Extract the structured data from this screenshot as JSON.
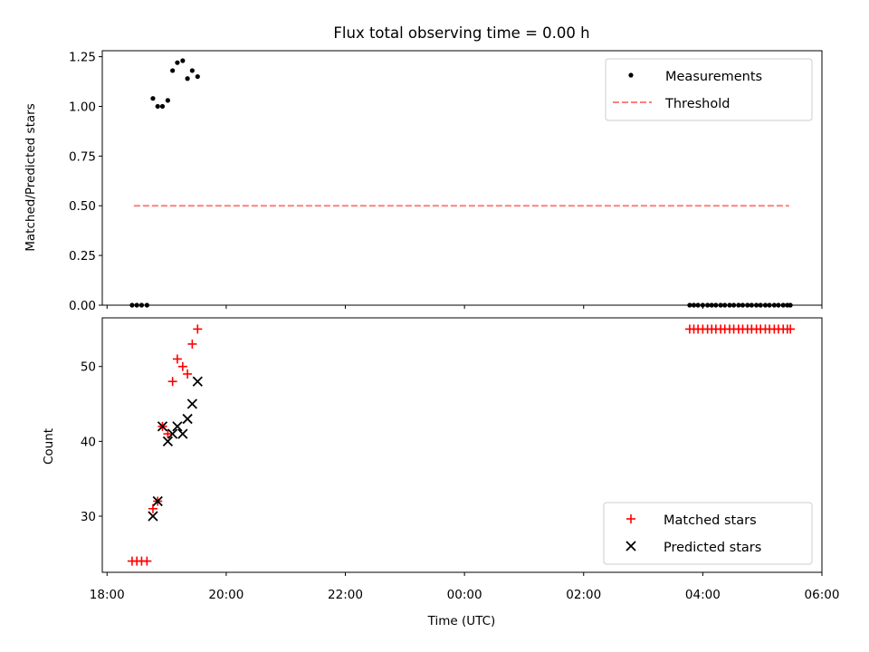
{
  "chart_data": [
    {
      "type": "scatter",
      "title": "Flux total observing time = 0.00 h",
      "xlabel": "",
      "ylabel": "Matched/Predicted stars",
      "xlim": [
        -0.08,
        12.0
      ],
      "ylim": [
        0.0,
        1.28
      ],
      "yticks": [
        0.0,
        0.25,
        0.5,
        0.75,
        1.0,
        1.25
      ],
      "ytick_labels": [
        "0.00",
        "0.25",
        "0.50",
        "0.75",
        "1.00",
        "1.25"
      ],
      "legend_position": "top-right",
      "legend": [
        "Measurements",
        "Threshold"
      ],
      "series": [
        {
          "name": "Measurements",
          "marker": "dot",
          "color": "#000000",
          "x": [
            0.42,
            0.5,
            0.58,
            0.67,
            0.77,
            0.85,
            0.93,
            1.02,
            1.1,
            1.18,
            1.27,
            1.35,
            1.43,
            1.52,
            9.78,
            9.85,
            9.92,
            10.0,
            10.08,
            10.15,
            10.22,
            10.3,
            10.37,
            10.45,
            10.52,
            10.6,
            10.67,
            10.75,
            10.82,
            10.9,
            10.97,
            11.05,
            11.12,
            11.2,
            11.27,
            11.35,
            11.42,
            11.47
          ],
          "y": [
            0,
            0,
            0,
            0,
            1.04,
            1.0,
            1.0,
            1.03,
            1.18,
            1.22,
            1.23,
            1.14,
            1.18,
            1.15,
            0,
            0,
            0,
            0,
            0,
            0,
            0,
            0,
            0,
            0,
            0,
            0,
            0,
            0,
            0,
            0,
            0,
            0,
            0,
            0,
            0,
            0,
            0,
            0
          ]
        },
        {
          "name": "Threshold",
          "style": "dashed",
          "color": "#ff7f7f",
          "x": [
            0.45,
            11.45
          ],
          "y": [
            0.5,
            0.5
          ]
        }
      ]
    },
    {
      "type": "scatter",
      "title": "",
      "xlabel": "Time (UTC)",
      "ylabel": "Count",
      "xlim": [
        -0.08,
        12.0
      ],
      "ylim": [
        22.5,
        56.5
      ],
      "yticks": [
        30,
        40,
        50
      ],
      "ytick_labels": [
        "30",
        "40",
        "50"
      ],
      "xticks": [
        0,
        2,
        4,
        6,
        8,
        10,
        12
      ],
      "xtick_labels": [
        "18:00",
        "20:00",
        "22:00",
        "00:00",
        "02:00",
        "04:00",
        "06:00"
      ],
      "legend_position": "lower-right",
      "legend": [
        "Matched stars",
        "Predicted stars"
      ],
      "series": [
        {
          "name": "Matched stars",
          "marker": "plus",
          "color": "#ff0000",
          "x": [
            0.42,
            0.5,
            0.58,
            0.67,
            0.77,
            0.85,
            0.93,
            1.02,
            1.1,
            1.18,
            1.27,
            1.35,
            1.43,
            1.52,
            9.78,
            9.85,
            9.92,
            10.0,
            10.08,
            10.15,
            10.22,
            10.3,
            10.37,
            10.45,
            10.52,
            10.6,
            10.67,
            10.75,
            10.82,
            10.9,
            10.97,
            11.05,
            11.12,
            11.2,
            11.27,
            11.35,
            11.42,
            11.47
          ],
          "y": [
            24,
            24,
            24,
            24,
            31,
            32,
            42,
            41,
            48,
            51,
            50,
            49,
            53,
            55,
            55,
            55,
            55,
            55,
            55,
            55,
            55,
            55,
            55,
            55,
            55,
            55,
            55,
            55,
            55,
            55,
            55,
            55,
            55,
            55,
            55,
            55,
            55,
            55
          ]
        },
        {
          "name": "Predicted stars",
          "marker": "x",
          "color": "#000000",
          "x": [
            0.77,
            0.85,
            0.93,
            1.02,
            1.1,
            1.18,
            1.27,
            1.35,
            1.43,
            1.52
          ],
          "y": [
            30,
            32,
            42,
            40,
            41,
            42,
            41,
            43,
            45,
            48
          ]
        }
      ]
    }
  ]
}
